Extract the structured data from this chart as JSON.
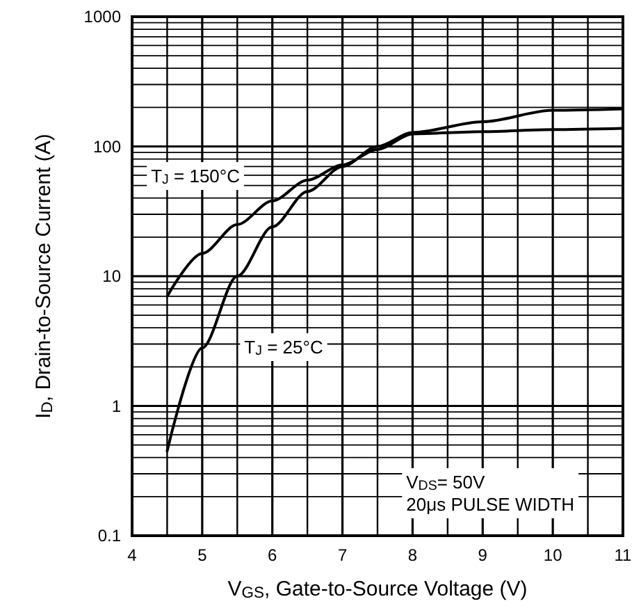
{
  "chart_data": {
    "type": "line",
    "xlabel": "V$_{GS}$, Gate-to-Source Voltage (V)",
    "ylabel": "I$_{D}$, Drain-to-Source Current (A)",
    "x": [
      4.5,
      5,
      5.5,
      6,
      6.5,
      7,
      7.5,
      8,
      9,
      10,
      11
    ],
    "series": [
      {
        "color": "#000000",
        "values": [
          7,
          15,
          25,
          38,
          55,
          72,
          95,
          125,
          130,
          135,
          138
        ]
      },
      {
        "color": "#000000",
        "values": [
          0.45,
          2.8,
          10,
          24,
          45,
          70,
          100,
          128,
          155,
          190,
          195
        ]
      }
    ],
    "annotations": [
      "T$_{J}$ = 150°C",
      "T$_{J}$ = 25°C",
      "V$_{DS}$= 50V\n20μs PULSE WIDTH"
    ],
    "xlim": [
      4,
      11
    ],
    "xticks": [
      4,
      5,
      6,
      7,
      8,
      9,
      10,
      11
    ],
    "ylim": [
      0.1,
      1000
    ],
    "yticks": [
      0.1,
      1,
      10,
      100,
      1000
    ],
    "log": "y",
    "grid": true,
    "marker": "none",
    "line_style": "solid"
  }
}
